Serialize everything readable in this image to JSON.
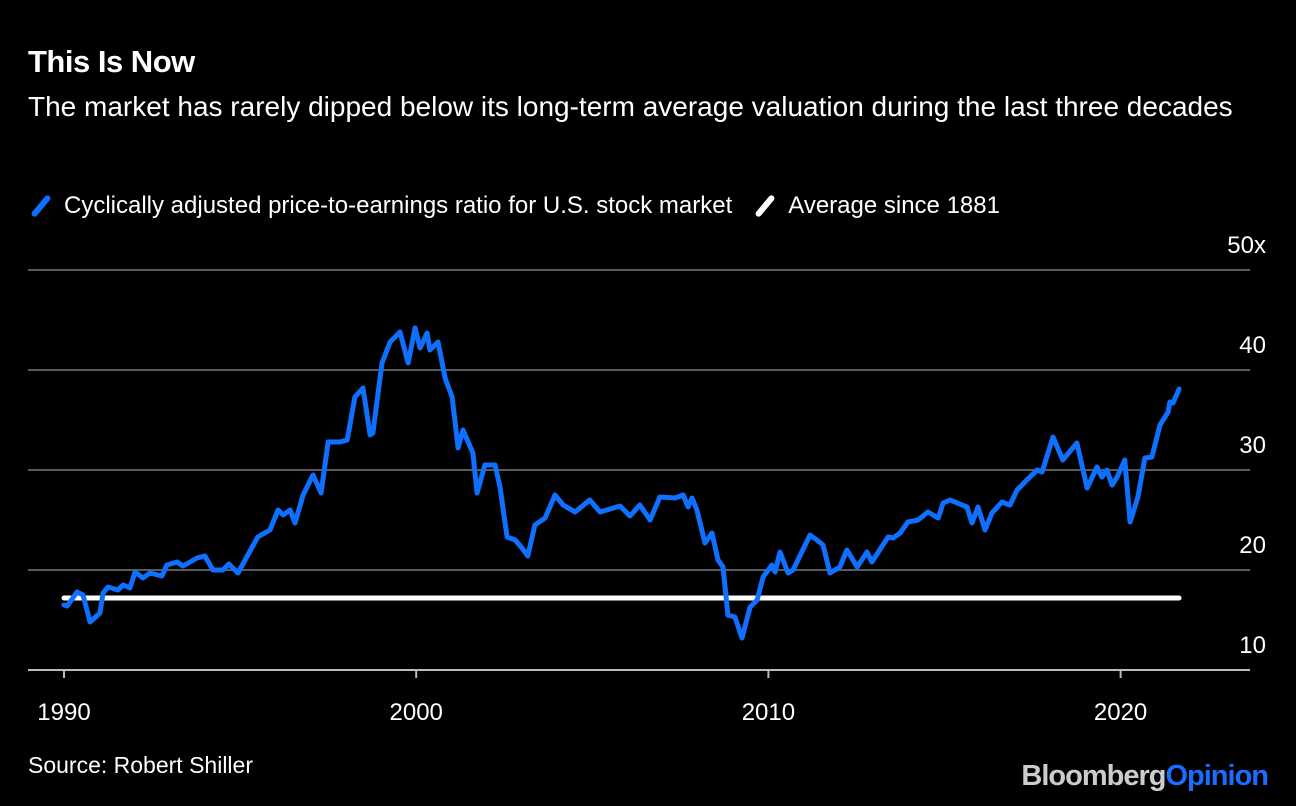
{
  "title": "This Is Now",
  "subtitle": "The market has rarely dipped below its long-term average valuation during the last three decades",
  "source": "Source: Robert Shiller",
  "logo": {
    "part1": "Bloomberg",
    "part2": "Opinion"
  },
  "colors": {
    "cape": "#0f6fff",
    "average": "#ffffff",
    "background": "#000000",
    "grid": "#5a5a5a"
  },
  "chart_data": {
    "type": "line",
    "title": "This Is Now",
    "xlabel": "",
    "ylabel": "",
    "xlim": [
      1989,
      2023.5
    ],
    "ylim": [
      10,
      50
    ],
    "grid": true,
    "legend_position": "top-left",
    "x_ticks": [
      {
        "value": 1990,
        "label": "1990"
      },
      {
        "value": 2000,
        "label": "2000"
      },
      {
        "value": 2010,
        "label": "2010"
      },
      {
        "value": 2020,
        "label": "2020"
      }
    ],
    "y_ticks": [
      {
        "value": 50,
        "label": "50x"
      },
      {
        "value": 40,
        "label": "40"
      },
      {
        "value": 30,
        "label": "30"
      },
      {
        "value": 20,
        "label": "20"
      },
      {
        "value": 10,
        "label": "10"
      }
    ],
    "series": [
      {
        "name": "Cyclically adjusted price-to-earnings ratio for U.S. stock market",
        "x": [
          1990.0,
          1990.09,
          1990.37,
          1990.54,
          1990.74,
          1991.02,
          1991.11,
          1991.25,
          1991.53,
          1991.68,
          1991.87,
          1992.02,
          1992.24,
          1992.44,
          1992.78,
          1992.92,
          1993.21,
          1993.38,
          1993.78,
          1994.0,
          1994.23,
          1994.51,
          1994.68,
          1994.94,
          1995.5,
          1995.85,
          1996.08,
          1996.22,
          1996.42,
          1996.56,
          1996.79,
          1997.07,
          1997.3,
          1997.5,
          1997.84,
          1998.04,
          1998.26,
          1998.49,
          1998.69,
          1998.77,
          1999.03,
          1999.26,
          1999.54,
          1999.77,
          1999.97,
          2000.11,
          2000.31,
          2000.39,
          2000.62,
          2000.82,
          2001.02,
          2001.19,
          2001.33,
          2001.61,
          2001.73,
          2001.95,
          2002.24,
          2002.38,
          2002.58,
          2002.81,
          2003.0,
          2003.17,
          2003.37,
          2003.66,
          2003.94,
          2004.17,
          2004.51,
          2004.93,
          2005.22,
          2005.79,
          2006.07,
          2006.35,
          2006.64,
          2006.92,
          2007.35,
          2007.58,
          2007.72,
          2007.83,
          2007.97,
          2008.2,
          2008.4,
          2008.57,
          2008.71,
          2008.85,
          2009.05,
          2009.25,
          2009.48,
          2009.68,
          2009.85,
          2010.1,
          2010.19,
          2010.33,
          2010.56,
          2010.7,
          2011.18,
          2011.38,
          2011.55,
          2011.75,
          2012.03,
          2012.23,
          2012.52,
          2012.8,
          2012.94,
          2013.4,
          2013.54,
          2013.74,
          2013.96,
          2014.25,
          2014.53,
          2014.82,
          2014.96,
          2015.16,
          2015.36,
          2015.64,
          2015.78,
          2015.95,
          2016.15,
          2016.35,
          2016.63,
          2016.86,
          2017.06,
          2017.34,
          2017.63,
          2017.77,
          2018.08,
          2018.36,
          2018.76,
          2019.05,
          2019.33,
          2019.47,
          2019.61,
          2019.76,
          2019.9,
          2020.12,
          2020.27,
          2020.49,
          2020.69,
          2020.89,
          2021.12,
          2021.35,
          2021.4,
          2021.49,
          2021.66
        ],
        "y": [
          16.5,
          16.4,
          17.8,
          17.5,
          14.8,
          15.7,
          17.7,
          18.3,
          18.0,
          18.5,
          18.2,
          19.8,
          19.2,
          19.7,
          19.4,
          20.5,
          20.8,
          20.4,
          21.2,
          21.4,
          20.0,
          20.0,
          20.6,
          19.7,
          23.3,
          24.0,
          26.0,
          25.5,
          26.0,
          24.7,
          27.5,
          29.5,
          27.7,
          32.8,
          32.8,
          33.0,
          37.3,
          38.2,
          33.5,
          33.7,
          40.7,
          42.8,
          43.8,
          40.7,
          44.2,
          42.2,
          43.7,
          42.0,
          42.8,
          39.2,
          37.3,
          32.2,
          34.0,
          31.7,
          27.7,
          30.5,
          30.5,
          28.3,
          23.3,
          23.0,
          22.2,
          21.4,
          24.5,
          25.2,
          27.5,
          26.5,
          25.8,
          27.0,
          25.8,
          26.4,
          25.4,
          26.5,
          25.0,
          27.3,
          27.2,
          27.5,
          26.3,
          27.2,
          26.0,
          22.7,
          23.7,
          21.0,
          20.3,
          15.5,
          15.3,
          13.2,
          16.3,
          17.0,
          19.3,
          20.5,
          19.8,
          21.8,
          19.7,
          20.0,
          23.5,
          23.0,
          22.5,
          19.7,
          20.3,
          22.0,
          20.3,
          21.8,
          20.8,
          23.3,
          23.2,
          23.7,
          24.8,
          25.0,
          25.8,
          25.2,
          26.7,
          27.0,
          26.7,
          26.3,
          24.7,
          26.3,
          24.0,
          25.7,
          26.8,
          26.5,
          28.0,
          29.0,
          30.0,
          29.8,
          33.3,
          31.0,
          32.7,
          28.2,
          30.3,
          29.3,
          30.0,
          28.5,
          29.3,
          31.0,
          24.8,
          27.3,
          31.2,
          31.3,
          34.5,
          35.8,
          36.8,
          36.7,
          38.1
        ]
      },
      {
        "name": "Average since 1881",
        "x": [
          1990.0,
          2021.66
        ],
        "y": [
          17.2,
          17.2
        ]
      }
    ]
  }
}
